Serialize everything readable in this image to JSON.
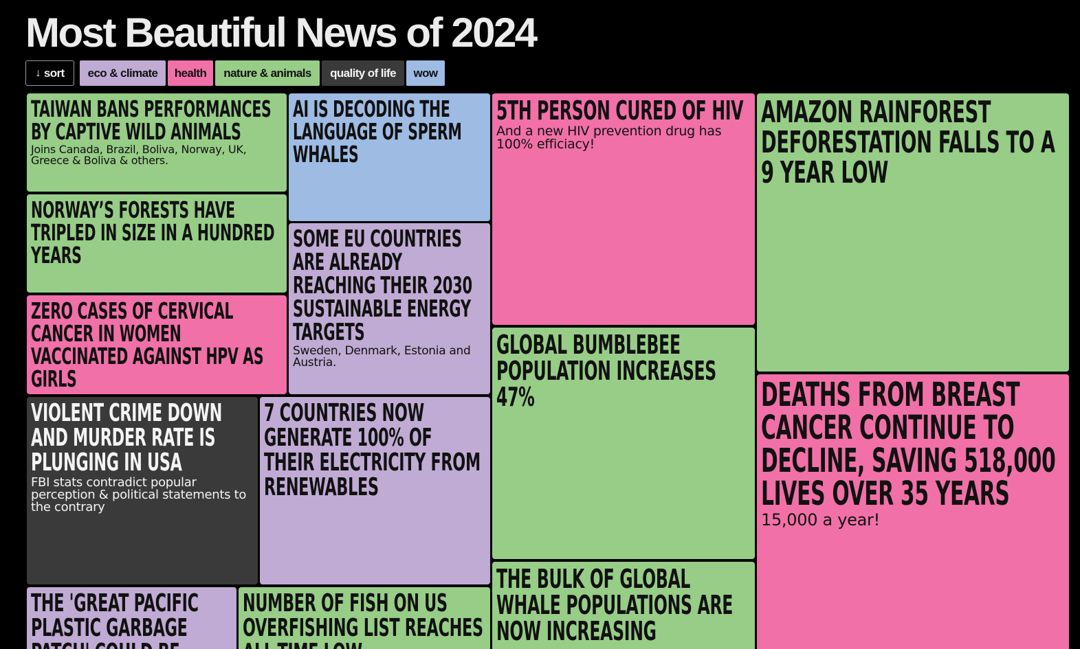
{
  "page": {
    "title": "Most Beautiful News of 2024"
  },
  "colors": {
    "eco_climate": "#c0abd4",
    "health": "#f170a8",
    "nature_animals": "#97cd87",
    "quality_of_life": "#3a3a3a",
    "wow": "#9dbbe3",
    "background": "#000000"
  },
  "filters": {
    "sort_label": "sort",
    "sort_icon": "arrow-down-icon",
    "categories": [
      {
        "label": "eco & climate"
      },
      {
        "label": "health"
      },
      {
        "label": "nature & animals"
      },
      {
        "label": "quality of life"
      },
      {
        "label": "wow"
      }
    ]
  },
  "stories": [
    {
      "category": "nature & animals",
      "headline": "Taiwan bans performances by captive wild animals",
      "subtitle": "Joins Canada, Brazil, Boliva, Norway, UK, Greece & Boliva & others."
    },
    {
      "category": "nature & animals",
      "headline": "Norway’s forests have tripled in size in a hundred years",
      "subtitle": ""
    },
    {
      "category": "health",
      "headline": "Zero cases of cervical cancer in women vaccinated against HPV as girls",
      "subtitle": ""
    },
    {
      "category": "wow",
      "headline": "AI is decoding the language of sperm whales",
      "subtitle": ""
    },
    {
      "category": "eco & climate",
      "headline": "Some EU countries are already reaching their 2030 sustainable energy targets",
      "subtitle": "Sweden, Denmark, Estonia and Austria."
    },
    {
      "category": "quality of life",
      "headline": "Violent crime down and murder rate is plunging in USA",
      "subtitle": "FBI stats contradict popular perception & political statements to the contrary"
    },
    {
      "category": "eco & climate",
      "headline": "7 countries now generate 100% of their electricity from renewables",
      "subtitle": ""
    },
    {
      "category": "health",
      "headline": "5th person cured of HIV",
      "subtitle": "And a new HIV prevention drug has 100% efficiacy!"
    },
    {
      "category": "nature & animals",
      "headline": "Global bumblebee population increases 47%",
      "subtitle": ""
    },
    {
      "category": "nature & animals",
      "headline": "The bulk of global whale populations are now increasing",
      "subtitle": ""
    },
    {
      "category": "nature & animals",
      "headline": "Amazon rainforest deforestation falls to a 9 year low",
      "subtitle": ""
    },
    {
      "category": "health",
      "headline": "Deaths from breast cancer continue to decline, saving 518,000 lives over 35 years",
      "subtitle": "15,000 a year!"
    },
    {
      "category": "eco & climate",
      "headline": "The 'Great Pacific Plastic Garbage Patch' could be",
      "subtitle": ""
    },
    {
      "category": "nature & animals",
      "headline": "Number of fish on US overfishing list reaches all-time low",
      "subtitle": ""
    }
  ]
}
